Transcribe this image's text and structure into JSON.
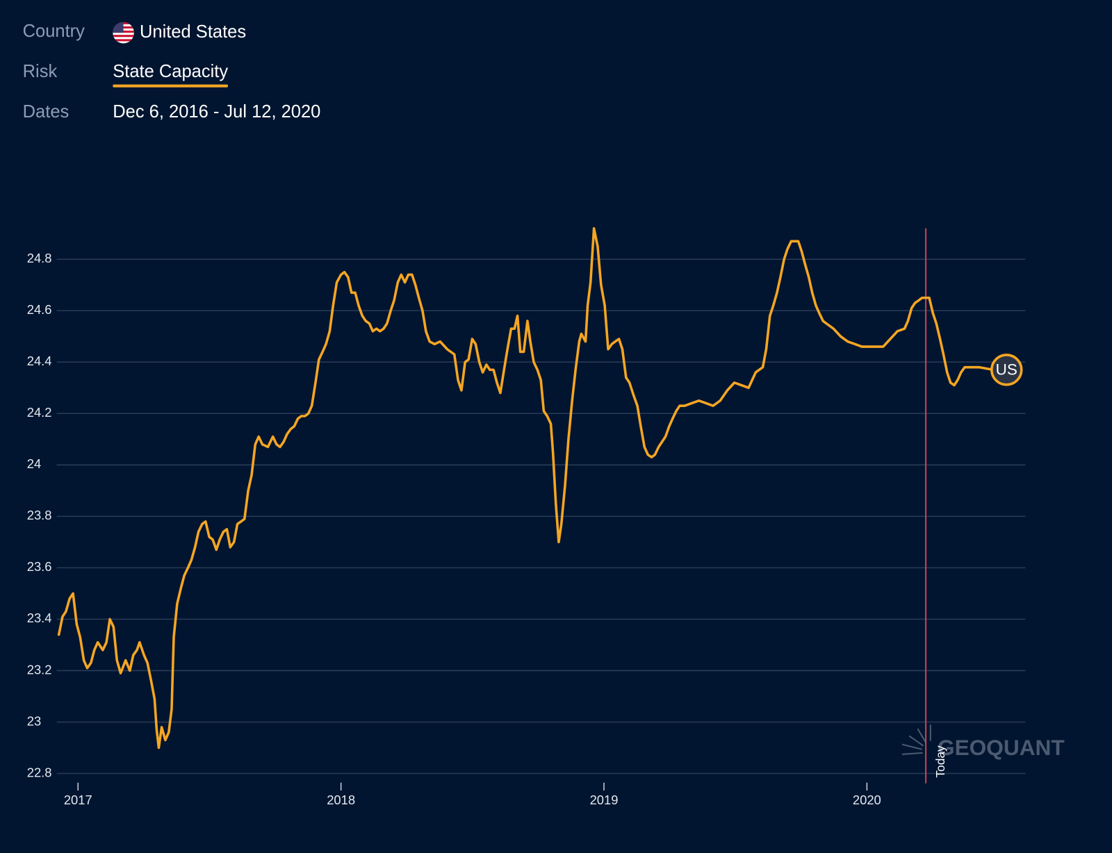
{
  "header": {
    "country_label": "Country",
    "country": "United States",
    "risk_label": "Risk",
    "risk": "State Capacity",
    "dates_label": "Dates",
    "dates": "Dec 6, 2016 - Jul 12, 2020"
  },
  "watermark": "GEOQUANT",
  "chart_data": {
    "type": "line",
    "x": [
      2016.927,
      2016.941,
      2016.954,
      2016.968,
      2016.981,
      2016.995,
      2017.008,
      2017.022,
      2017.035,
      2017.049,
      2017.062,
      2017.075,
      2017.094,
      2017.108,
      2017.121,
      2017.135,
      2017.148,
      2017.162,
      2017.181,
      2017.197,
      2017.21,
      2017.224,
      2017.234,
      2017.251,
      2017.264,
      2017.278,
      2017.291,
      2017.299,
      2017.307,
      2017.318,
      2017.332,
      2017.345,
      2017.356,
      2017.364,
      2017.377,
      2017.391,
      2017.404,
      2017.418,
      2017.431,
      2017.445,
      2017.458,
      2017.472,
      2017.485,
      2017.499,
      2017.512,
      2017.526,
      2017.539,
      2017.553,
      2017.566,
      2017.579,
      2017.593,
      2017.606,
      2017.62,
      2017.633,
      2017.647,
      2017.66,
      2017.674,
      2017.687,
      2017.701,
      2017.722,
      2017.741,
      2017.755,
      2017.768,
      2017.782,
      2017.795,
      2017.809,
      2017.822,
      2017.836,
      2017.849,
      2017.863,
      2017.876,
      2017.889,
      2017.903,
      2017.916,
      2017.93,
      2017.943,
      2017.957,
      2017.97,
      2017.984,
      2018.0,
      2018.013,
      2018.027,
      2018.04,
      2018.054,
      2018.067,
      2018.081,
      2018.094,
      2018.108,
      2018.121,
      2018.135,
      2018.148,
      2018.162,
      2018.175,
      2018.189,
      2018.202,
      2018.216,
      2018.229,
      2018.243,
      2018.256,
      2018.27,
      2018.283,
      2018.296,
      2018.31,
      2018.323,
      2018.337,
      2018.356,
      2018.377,
      2018.404,
      2018.431,
      2018.445,
      2018.458,
      2018.472,
      2018.485,
      2018.499,
      2018.512,
      2018.526,
      2018.539,
      2018.553,
      2018.566,
      2018.58,
      2018.593,
      2018.606,
      2018.62,
      2018.633,
      2018.647,
      2018.66,
      2018.671,
      2018.682,
      2018.695,
      2018.709,
      2018.72,
      2018.733,
      2018.747,
      2018.76,
      2018.771,
      2018.784,
      2018.798,
      2018.806,
      2018.817,
      2018.828,
      2018.838,
      2018.852,
      2018.865,
      2018.879,
      2018.892,
      2018.906,
      2018.914,
      2018.93,
      2018.938,
      2018.949,
      2018.962,
      2018.976,
      2018.989,
      2019.003,
      2019.016,
      2019.03,
      2019.043,
      2019.057,
      2019.07,
      2019.084,
      2019.097,
      2019.113,
      2019.127,
      2019.14,
      2019.154,
      2019.167,
      2019.181,
      2019.194,
      2019.208,
      2019.221,
      2019.234,
      2019.248,
      2019.261,
      2019.275,
      2019.288,
      2019.307,
      2019.334,
      2019.361,
      2019.388,
      2019.415,
      2019.442,
      2019.469,
      2019.496,
      2019.523,
      2019.55,
      2019.577,
      2019.604,
      2019.617,
      2019.631,
      2019.644,
      2019.658,
      2019.671,
      2019.685,
      2019.698,
      2019.712,
      2019.725,
      2019.739,
      2019.752,
      2019.765,
      2019.779,
      2019.792,
      2019.806,
      2019.819,
      2019.833,
      2019.846,
      2019.873,
      2019.9,
      2019.927,
      2019.954,
      2019.981,
      2020.008,
      2020.035,
      2020.062,
      2020.089,
      2020.116,
      2020.143,
      2020.156,
      2020.17,
      2020.183,
      2020.197,
      2020.21,
      2020.224,
      2020.237,
      2020.251,
      2020.264,
      2020.278,
      2020.291,
      2020.305,
      2020.318,
      2020.332,
      2020.345,
      2020.358,
      2020.372,
      2020.426,
      2020.48,
      2020.531
    ],
    "series": [
      {
        "name": "US",
        "color": "#f5a623",
        "values": [
          23.34,
          23.41,
          23.43,
          23.48,
          23.5,
          23.38,
          23.33,
          23.24,
          23.21,
          23.23,
          23.28,
          23.31,
          23.28,
          23.31,
          23.4,
          23.37,
          23.24,
          23.19,
          23.24,
          23.2,
          23.26,
          23.28,
          23.31,
          23.26,
          23.23,
          23.16,
          23.09,
          22.97,
          22.9,
          22.98,
          22.93,
          22.96,
          23.05,
          23.33,
          23.46,
          23.52,
          23.57,
          23.6,
          23.63,
          23.68,
          23.74,
          23.77,
          23.78,
          23.72,
          23.71,
          23.67,
          23.71,
          23.74,
          23.75,
          23.68,
          23.7,
          23.77,
          23.78,
          23.79,
          23.9,
          23.96,
          24.08,
          24.11,
          24.08,
          24.07,
          24.11,
          24.08,
          24.07,
          24.09,
          24.12,
          24.14,
          24.15,
          24.18,
          24.19,
          24.19,
          24.2,
          24.23,
          24.32,
          24.41,
          24.44,
          24.47,
          24.52,
          24.62,
          24.71,
          24.74,
          24.75,
          24.73,
          24.67,
          24.67,
          24.62,
          24.58,
          24.56,
          24.55,
          24.52,
          24.53,
          24.52,
          24.53,
          24.55,
          24.6,
          24.64,
          24.71,
          24.74,
          24.71,
          24.74,
          24.74,
          24.7,
          24.65,
          24.6,
          24.52,
          24.48,
          24.47,
          24.48,
          24.45,
          24.43,
          24.33,
          24.29,
          24.4,
          24.41,
          24.49,
          24.47,
          24.4,
          24.36,
          24.39,
          24.37,
          24.37,
          24.32,
          24.28,
          24.37,
          24.45,
          24.53,
          24.53,
          24.58,
          24.44,
          24.44,
          24.56,
          24.48,
          24.4,
          24.37,
          24.33,
          24.21,
          24.19,
          24.16,
          24.05,
          23.85,
          23.7,
          23.77,
          23.92,
          24.1,
          24.25,
          24.37,
          24.48,
          24.51,
          24.48,
          24.62,
          24.71,
          24.92,
          24.85,
          24.7,
          24.62,
          24.45,
          24.47,
          24.48,
          24.49,
          24.45,
          24.34,
          24.32,
          24.27,
          24.23,
          24.15,
          24.07,
          24.04,
          24.03,
          24.04,
          24.07,
          24.09,
          24.11,
          24.15,
          24.18,
          24.21,
          24.23,
          24.23,
          24.24,
          24.25,
          24.24,
          24.23,
          24.25,
          24.29,
          24.32,
          24.31,
          24.3,
          24.36,
          24.38,
          24.45,
          24.58,
          24.62,
          24.67,
          24.73,
          24.8,
          24.84,
          24.87,
          24.87,
          24.87,
          24.83,
          24.78,
          24.73,
          24.67,
          24.62,
          24.59,
          24.56,
          24.55,
          24.53,
          24.5,
          24.48,
          24.47,
          24.46,
          24.46,
          24.46,
          24.46,
          24.49,
          24.52,
          24.53,
          24.56,
          24.61,
          24.63,
          24.64,
          24.65,
          24.65,
          24.65,
          24.59,
          24.55,
          24.49,
          24.43,
          24.36,
          24.32,
          24.31,
          24.33,
          24.36,
          24.38,
          24.38,
          24.37,
          24.37
        ]
      }
    ],
    "xlim": [
      2016.919,
      2020.603
    ],
    "xticks": [
      2017,
      2018,
      2019,
      2020
    ],
    "ylim": [
      22.8,
      24.92
    ],
    "yticks": [
      22.8,
      23,
      23.2,
      23.4,
      23.6,
      23.8,
      24,
      24.2,
      24.4,
      24.6,
      24.8
    ],
    "grid": true,
    "today": {
      "label": "Today",
      "x": 2020.224
    }
  }
}
